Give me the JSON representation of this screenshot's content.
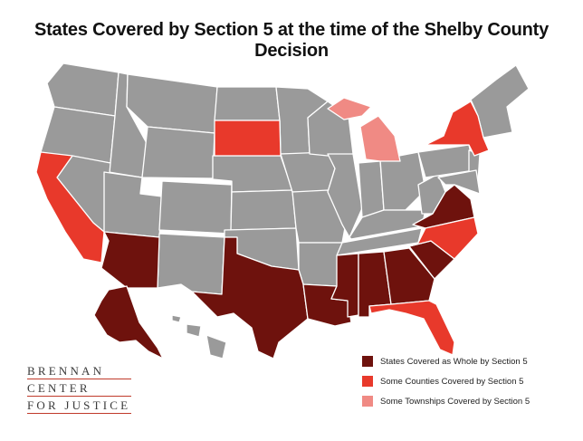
{
  "title": "States Covered by Section 5 at the time of the Shelby County Decision",
  "colors": {
    "not_covered": "#9a9a9a",
    "covered_whole": "#6e120d",
    "some_counties": "#e8392b",
    "some_townships": "#f08a84",
    "logo_rule": "#c03a2b"
  },
  "legend": [
    {
      "label": "States Covered as Whole by Section 5",
      "category": "covered_whole"
    },
    {
      "label": "Some Counties Covered by Section 5",
      "category": "some_counties"
    },
    {
      "label": "Some Townships Covered by Section 5",
      "category": "some_townships"
    }
  ],
  "logo": {
    "line1": "BRENNAN",
    "line2": "CENTER",
    "line3": "FOR JUSTICE"
  },
  "coverage": {
    "covered_whole": [
      "Alaska",
      "Arizona",
      "Texas",
      "Louisiana",
      "Mississippi",
      "Alabama",
      "Georgia",
      "South Carolina",
      "Virginia"
    ],
    "some_counties": [
      "California",
      "South Dakota",
      "New York",
      "North Carolina",
      "Florida"
    ],
    "some_townships": [
      "Michigan"
    ]
  }
}
